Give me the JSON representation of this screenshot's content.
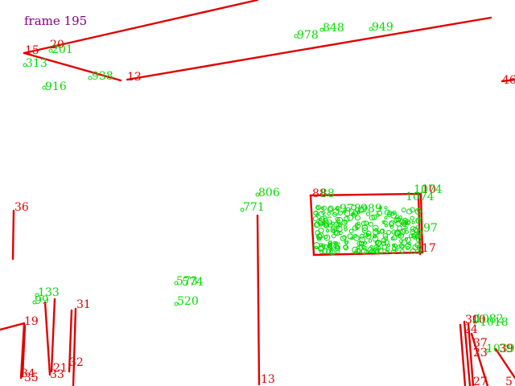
{
  "frame": {
    "label": "frame 195"
  },
  "colors": {
    "frame_text": "#800080",
    "track_red": "#e00000",
    "feature_green": "#00dd00",
    "background": "#ffffff"
  },
  "red_labels": [
    "15",
    "20",
    "13",
    "46",
    "36",
    "31",
    "19",
    "34",
    "35",
    "21",
    "33",
    "32",
    "13",
    "30",
    "10",
    "24",
    "37",
    "23",
    "39",
    "27",
    "5",
    "88",
    "10",
    "17"
  ],
  "green_labels": [
    "201",
    "313",
    "916",
    "938",
    "978",
    "848",
    "949",
    "806",
    "771",
    "88",
    "1074",
    "978",
    "989",
    "95",
    "97",
    "46",
    "133",
    "99",
    "573",
    "574",
    "520",
    "1082",
    "1018",
    "1074",
    "1039"
  ]
}
